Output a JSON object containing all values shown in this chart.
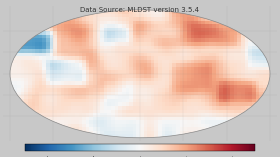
{
  "title": "Data Source: MLDST version 3.5.4",
  "title_fontsize": 5.0,
  "title_color": "#333333",
  "background_color": "#c8c8c8",
  "colormap": "RdBu_r",
  "vmin": -2.5,
  "vmax": 2.5
}
